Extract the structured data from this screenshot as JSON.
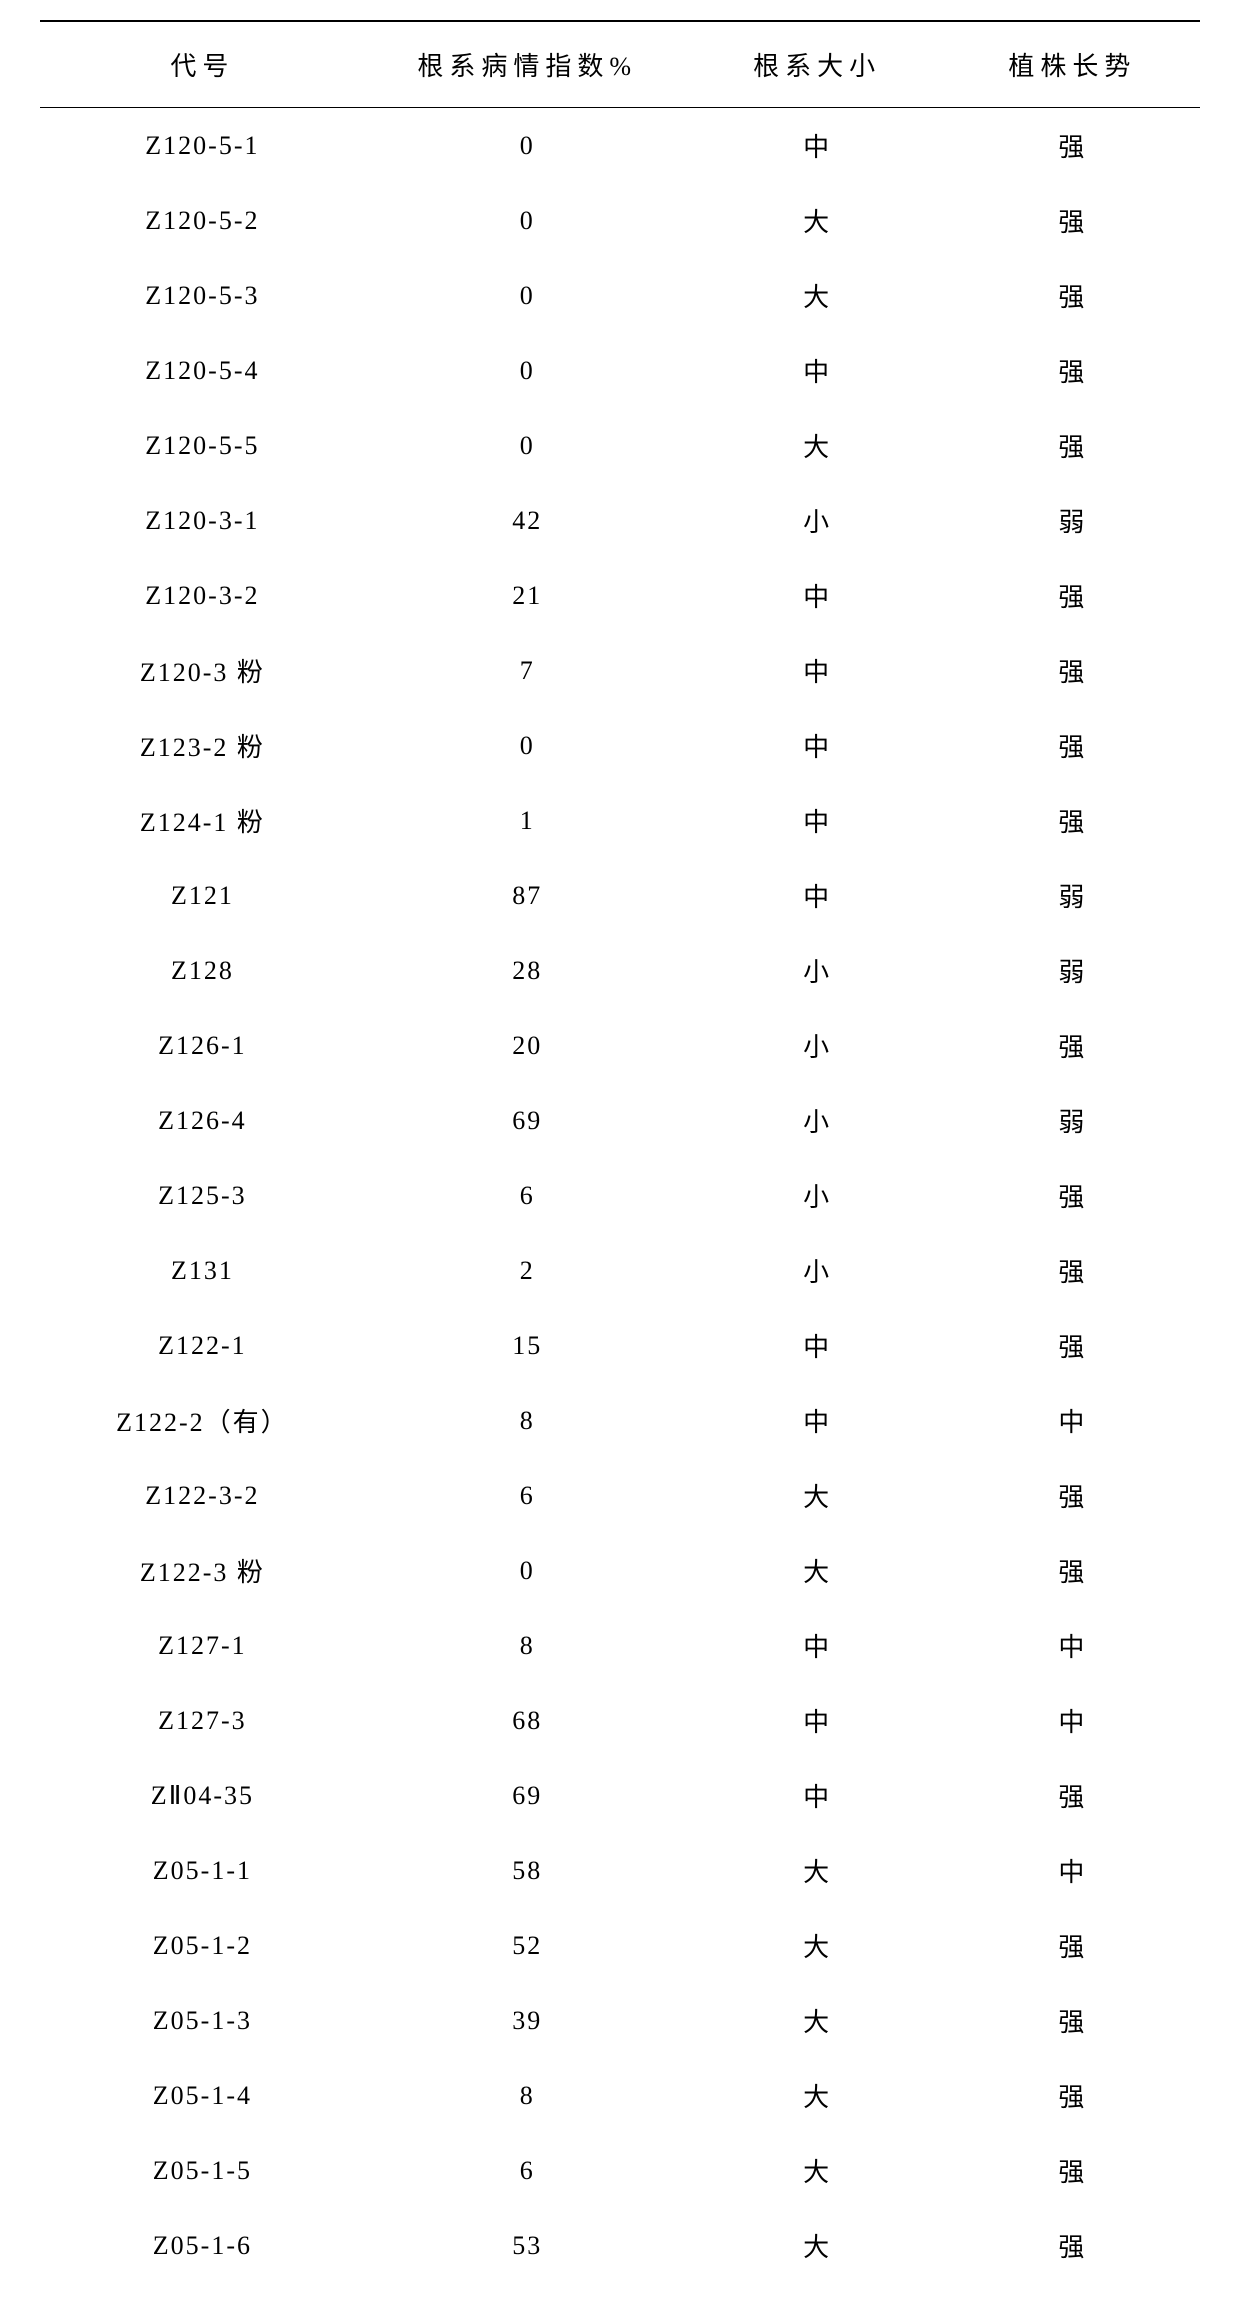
{
  "table": {
    "columns": [
      {
        "label": "代号",
        "key": "code"
      },
      {
        "label": "根系病情指数%",
        "key": "index"
      },
      {
        "label": "根系大小",
        "key": "size"
      },
      {
        "label": "植株长势",
        "key": "growth"
      }
    ],
    "rows": [
      {
        "code": "Z120-5-1",
        "index": "0",
        "size": "中",
        "growth": "强"
      },
      {
        "code": "Z120-5-2",
        "index": "0",
        "size": "大",
        "growth": "强"
      },
      {
        "code": "Z120-5-3",
        "index": "0",
        "size": "大",
        "growth": "强"
      },
      {
        "code": "Z120-5-4",
        "index": "0",
        "size": "中",
        "growth": "强"
      },
      {
        "code": "Z120-5-5",
        "index": "0",
        "size": "大",
        "growth": "强"
      },
      {
        "code": "Z120-3-1",
        "index": "42",
        "size": "小",
        "growth": "弱"
      },
      {
        "code": "Z120-3-2",
        "index": "21",
        "size": "中",
        "growth": "强"
      },
      {
        "code": "Z120-3 粉",
        "index": "7",
        "size": "中",
        "growth": "强"
      },
      {
        "code": "Z123-2 粉",
        "index": "0",
        "size": "中",
        "growth": "强"
      },
      {
        "code": "Z124-1 粉",
        "index": "1",
        "size": "中",
        "growth": "强"
      },
      {
        "code": "Z121",
        "index": "87",
        "size": "中",
        "growth": "弱"
      },
      {
        "code": "Z128",
        "index": "28",
        "size": "小",
        "growth": "弱"
      },
      {
        "code": "Z126-1",
        "index": "20",
        "size": "小",
        "growth": "强"
      },
      {
        "code": "Z126-4",
        "index": "69",
        "size": "小",
        "growth": "弱"
      },
      {
        "code": "Z125-3",
        "index": "6",
        "size": "小",
        "growth": "强"
      },
      {
        "code": "Z131",
        "index": "2",
        "size": "小",
        "growth": "强"
      },
      {
        "code": "Z122-1",
        "index": "15",
        "size": "中",
        "growth": "强"
      },
      {
        "code": "Z122-2（有）",
        "index": "8",
        "size": "中",
        "growth": "中"
      },
      {
        "code": "Z122-3-2",
        "index": "6",
        "size": "大",
        "growth": "强"
      },
      {
        "code": "Z122-3 粉",
        "index": "0",
        "size": "大",
        "growth": "强"
      },
      {
        "code": "Z127-1",
        "index": "8",
        "size": "中",
        "growth": "中"
      },
      {
        "code": "Z127-3",
        "index": "68",
        "size": "中",
        "growth": "中"
      },
      {
        "code": "ZⅡ04-35",
        "index": "69",
        "size": "中",
        "growth": "强"
      },
      {
        "code": "Z05-1-1",
        "index": "58",
        "size": "大",
        "growth": "中"
      },
      {
        "code": "Z05-1-2",
        "index": "52",
        "size": "大",
        "growth": "强"
      },
      {
        "code": "Z05-1-3",
        "index": "39",
        "size": "大",
        "growth": "强"
      },
      {
        "code": "Z05-1-4",
        "index": "8",
        "size": "大",
        "growth": "强"
      },
      {
        "code": "Z05-1-5",
        "index": "6",
        "size": "大",
        "growth": "强"
      },
      {
        "code": "Z05-1-6",
        "index": "53",
        "size": "大",
        "growth": "强"
      }
    ],
    "styling": {
      "border_color": "#000000",
      "header_border_top_width": 2,
      "header_border_bottom_width": 1.5,
      "background_color": "#ffffff",
      "text_color": "#000000",
      "font_family": "SimSun",
      "header_fontsize": 26,
      "cell_fontsize": 26,
      "header_letter_spacing": 6,
      "cell_letter_spacing": 2,
      "column_widths_percent": [
        28,
        28,
        22,
        22
      ]
    }
  }
}
